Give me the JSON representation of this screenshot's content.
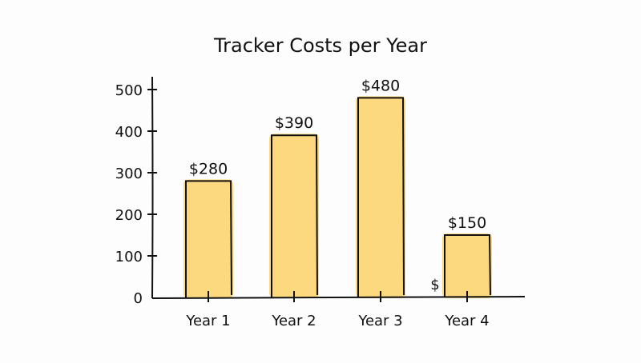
{
  "chart_data": {
    "type": "bar",
    "title": "Tracker Costs per Year",
    "xlabel": "",
    "ylabel": "$",
    "categories": [
      "Year 1",
      "Year 2",
      "Year 3",
      "Year 4"
    ],
    "values": [
      280,
      390,
      480,
      150
    ],
    "data_labels": [
      "$280",
      "$390",
      "$480",
      "$150"
    ],
    "ylim": [
      0,
      500
    ],
    "yticks": [
      0,
      100,
      200,
      300,
      400,
      500
    ],
    "grid": false,
    "legend": null,
    "bar_color": "#fcd97e",
    "outline_color": "#111111"
  }
}
